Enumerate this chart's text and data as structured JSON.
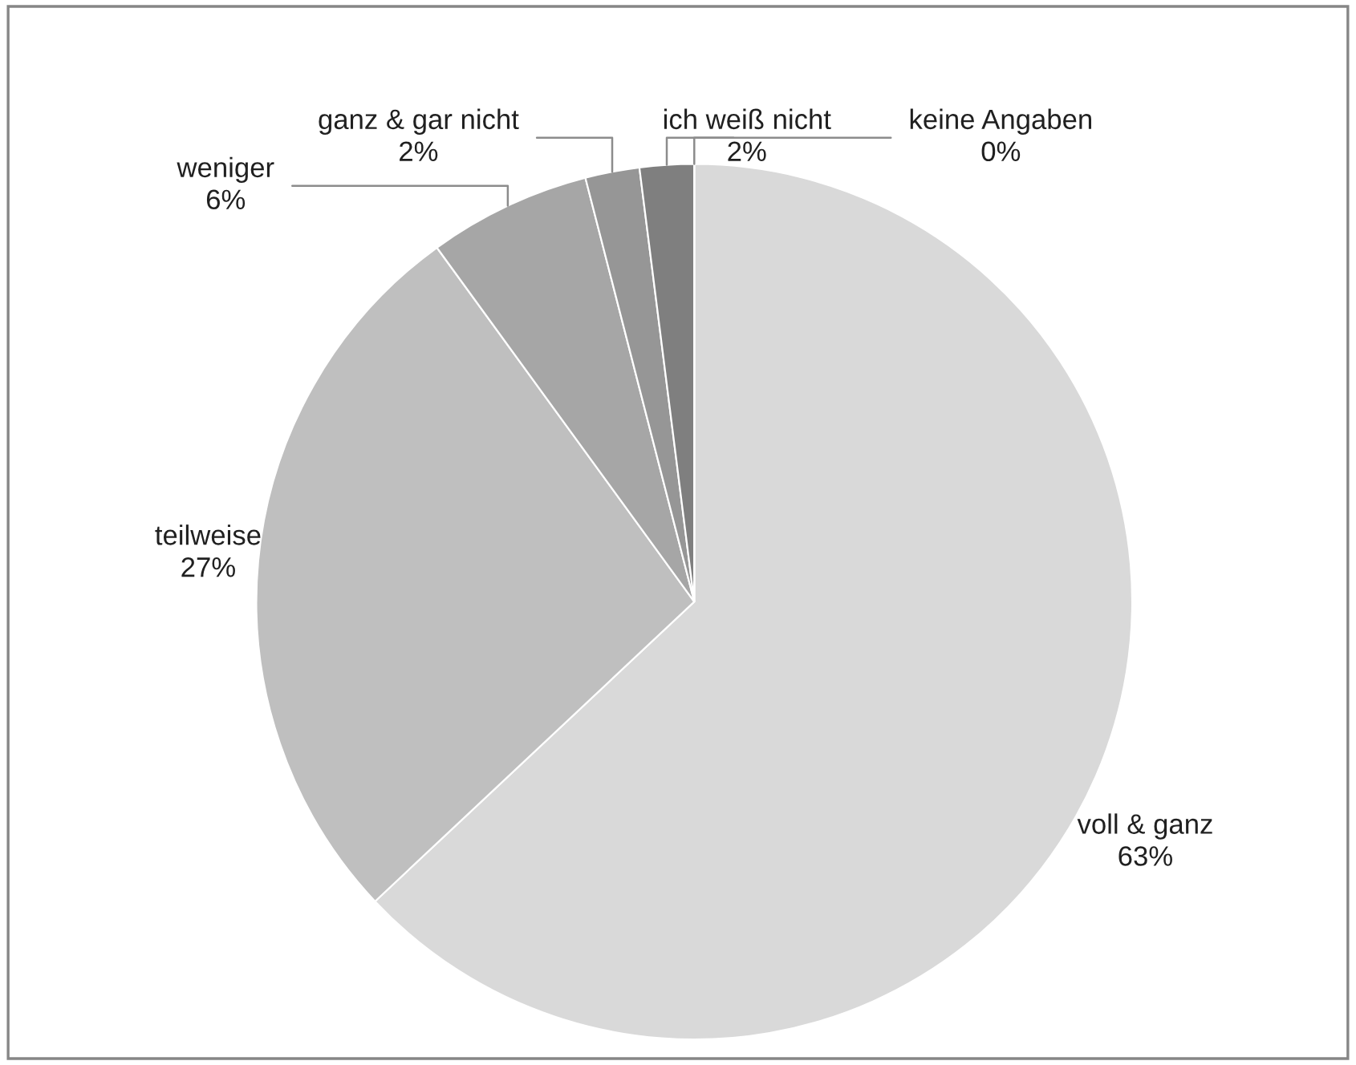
{
  "chart_data": {
    "type": "pie",
    "categories": [
      "voll & ganz",
      "teilweise",
      "weniger",
      "ganz & gar nicht",
      "ich weiß nicht",
      "keine Angaben"
    ],
    "values": [
      63,
      27,
      6,
      2,
      2,
      0
    ],
    "colors": [
      "#d9d9d9",
      "#bfbfbf",
      "#a6a6a6",
      "#969696",
      "#7f7f7f",
      "#6b6b6b"
    ],
    "value_labels": [
      "63%",
      "27%",
      "6%",
      "2%",
      "2%",
      "0%"
    ],
    "legend": false
  }
}
